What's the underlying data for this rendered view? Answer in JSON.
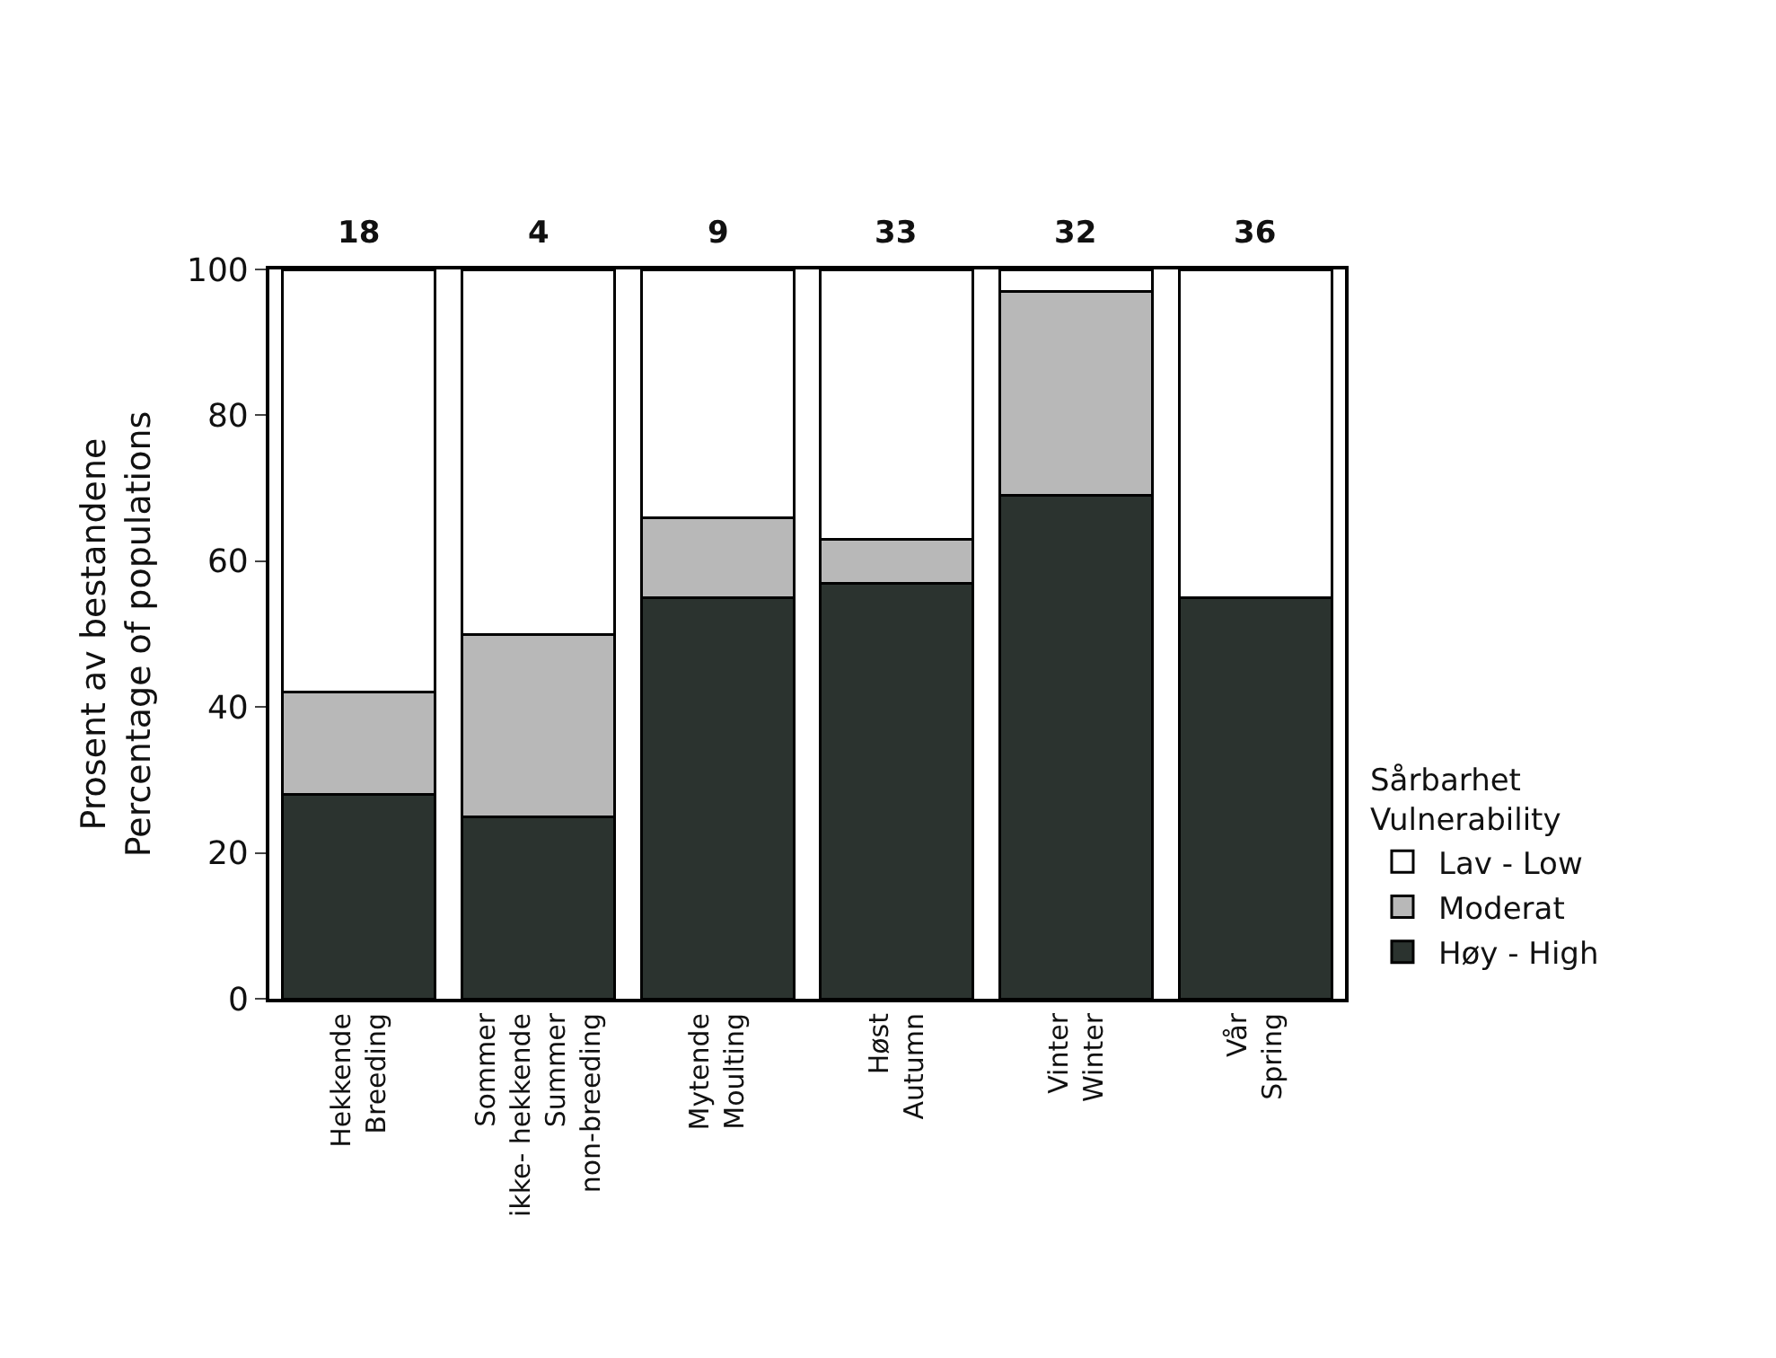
{
  "chart_data": {
    "type": "bar",
    "stacked": true,
    "ylabel": "Prosent av bestandene\nPercentage of populations",
    "legend_title": "Sårbarhet\nVulnerability",
    "legend": "right",
    "categories": [
      "Hekkende\nBreeding",
      "Sommer\nikke- hekkende\nSummer\nnon-breeding",
      "Mytende\nMoulting",
      "Høst\nAutumn",
      "Vinter\nWinter",
      "Vår\nSpring"
    ],
    "series": [
      {
        "name": "Høy - High",
        "color": "#2b332f",
        "values": [
          28,
          25,
          55,
          57,
          69,
          55
        ]
      },
      {
        "name": "Moderat",
        "color": "#b8b8b8",
        "values": [
          14,
          25,
          11,
          6,
          28,
          0
        ]
      },
      {
        "name": "Lav - Low",
        "color": "#ffffff",
        "values": [
          58,
          50,
          34,
          37,
          3,
          45
        ]
      }
    ],
    "annotations": [
      "18",
      "4",
      "9",
      "33",
      "32",
      "36"
    ],
    "ylim": [
      0,
      100
    ],
    "yticks": [
      0,
      20,
      40,
      60,
      80,
      100
    ]
  }
}
